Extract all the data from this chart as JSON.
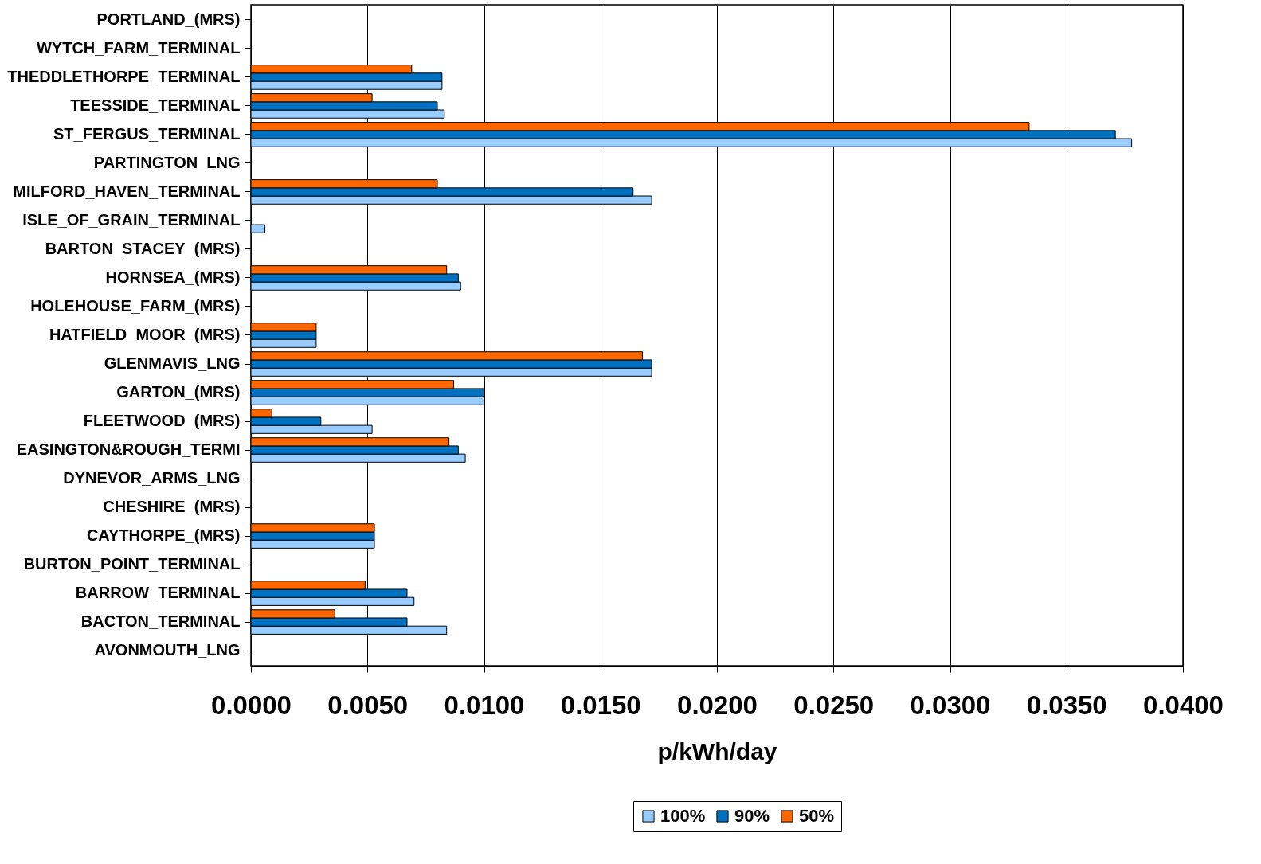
{
  "chart_data": {
    "type": "bar",
    "orientation": "horizontal",
    "xlabel": "p/kWh/day",
    "categories": [
      "PORTLAND_(MRS)",
      "WYTCH_FARM_TERMINAL",
      "THEDDLETHORPE_TERMINAL",
      "TEESSIDE_TERMINAL",
      "ST_FERGUS_TERMINAL",
      "PARTINGTON_LNG",
      "MILFORD_HAVEN_TERMINAL",
      "ISLE_OF_GRAIN_TERMINAL",
      "BARTON_STACEY_(MRS)",
      "HORNSEA_(MRS)",
      "HOLEHOUSE_FARM_(MRS)",
      "HATFIELD_MOOR_(MRS)",
      "GLENMAVIS_LNG",
      "GARTON_(MRS)",
      "FLEETWOOD_(MRS)",
      "EASINGTON&ROUGH_TERMI",
      "DYNEVOR_ARMS_LNG",
      "CHESHIRE_(MRS)",
      "CAYTHORPE_(MRS)",
      "BURTON_POINT_TERMINAL",
      "BARROW_TERMINAL",
      "BACTON_TERMINAL",
      "AVONMOUTH_LNG"
    ],
    "series": [
      {
        "name": "100%",
        "color": "#99ccff",
        "values": [
          null,
          null,
          0.0082,
          0.0083,
          0.0378,
          null,
          0.0172,
          0.0006,
          null,
          0.009,
          null,
          0.0028,
          0.0172,
          0.01,
          0.0052,
          0.0092,
          null,
          null,
          0.0053,
          null,
          0.007,
          0.0084,
          null
        ]
      },
      {
        "name": "90%",
        "color": "#0070c0",
        "values": [
          null,
          null,
          0.0082,
          0.008,
          0.0371,
          null,
          0.0164,
          null,
          null,
          0.0089,
          null,
          0.0028,
          0.0172,
          0.01,
          0.003,
          0.0089,
          null,
          null,
          0.0053,
          null,
          0.0067,
          0.0067,
          null
        ]
      },
      {
        "name": "50%",
        "color": "#ff6600",
        "values": [
          null,
          null,
          0.0069,
          0.0052,
          0.0334,
          null,
          0.008,
          null,
          null,
          0.0084,
          null,
          0.0028,
          0.0168,
          0.0087,
          0.0009,
          0.0085,
          null,
          null,
          0.0053,
          null,
          0.0049,
          0.0036,
          null
        ]
      }
    ],
    "xlim": [
      0,
      0.04
    ],
    "xticks": [
      {
        "value": 0,
        "label": "0.0000"
      },
      {
        "value": 0.005,
        "label": "0.0050"
      },
      {
        "value": 0.01,
        "label": "0.0100"
      },
      {
        "value": 0.015,
        "label": "0.0150"
      },
      {
        "value": 0.02,
        "label": "0.0200"
      },
      {
        "value": 0.025,
        "label": "0.0250"
      },
      {
        "value": 0.03,
        "label": "0.0300"
      },
      {
        "value": 0.035,
        "label": "0.0350"
      },
      {
        "value": 0.04,
        "label": "0.0400"
      }
    ],
    "grid": "x",
    "legend": "bottom"
  }
}
